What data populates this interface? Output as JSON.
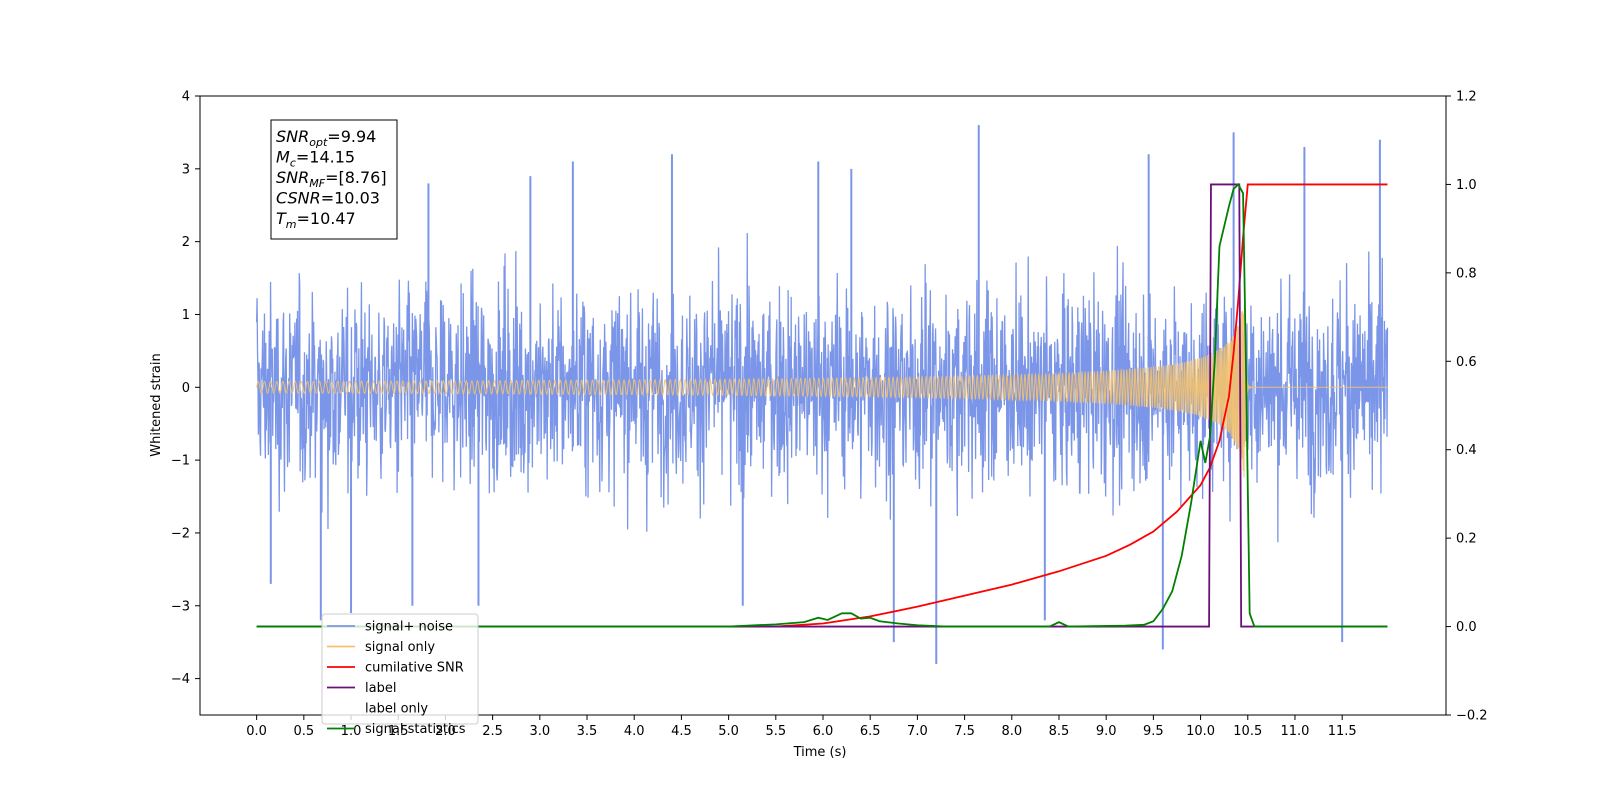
{
  "chart_data": {
    "type": "line",
    "xlabel": "Time (s)",
    "ylabel": "Whitened strain",
    "xlim": [
      -0.6,
      12.6
    ],
    "ylim": [
      -4.5,
      4
    ],
    "y2lim": [
      -0.2,
      1.2
    ],
    "x_ticks": [
      0.0,
      0.5,
      1.0,
      1.5,
      2.0,
      2.5,
      3.0,
      3.5,
      4.0,
      4.5,
      5.0,
      5.5,
      6.0,
      6.5,
      7.0,
      7.5,
      8.0,
      8.5,
      9.0,
      9.5,
      10.0,
      10.5,
      11.0,
      11.5
    ],
    "x_tick_labels": [
      "0.0",
      "0.5",
      "1.0",
      "1.5",
      "2.0",
      "2.5",
      "3.0",
      "3.5",
      "4.0",
      "4.5",
      "5.0",
      "5.5",
      "6.0",
      "6.5",
      "7.0",
      "7.5",
      "8.0",
      "8.5",
      "9.0",
      "9.5",
      "10.0",
      "10.5",
      "11.0",
      "11.5"
    ],
    "y_ticks": [
      -4,
      -3,
      -2,
      -1,
      0,
      1,
      2,
      3,
      4
    ],
    "y_tick_labels": [
      "−4",
      "−3",
      "−2",
      "−1",
      "0",
      "1",
      "2",
      "3",
      "4"
    ],
    "y2_ticks": [
      -0.2,
      0.0,
      0.2,
      0.4,
      0.6,
      0.8,
      1.0,
      1.2
    ],
    "y2_tick_labels": [
      "−0.2",
      "0.0",
      "0.2",
      "0.4",
      "0.6",
      "0.8",
      "1.0",
      "1.2"
    ],
    "grid": false,
    "legend_position": "bottom-left",
    "annotation": [
      {
        "base": "SNR",
        "sub": "opt",
        "value": "=9.94"
      },
      {
        "base": "M",
        "sub": "c",
        "value": "=14.15"
      },
      {
        "base": "SNR",
        "sub": "MF",
        "value": "=[8.76]"
      },
      {
        "base": "CSNR",
        "sub": "",
        "value": "=10.03"
      },
      {
        "base": "T",
        "sub": "m",
        "value": "=10.47"
      }
    ],
    "series": [
      {
        "name": "signal+ noise",
        "color": "#7b96e8",
        "axis": "left",
        "style": "noise",
        "x_range": [
          0.0,
          11.98
        ],
        "envelope": [
          2.3,
          3.6
        ],
        "peaks": [
          [
            0.15,
            -2.7
          ],
          [
            0.68,
            -3.2
          ],
          [
            1.0,
            -3.1
          ],
          [
            1.65,
            -3.0
          ],
          [
            1.82,
            2.8
          ],
          [
            2.35,
            -3.0
          ],
          [
            2.9,
            2.9
          ],
          [
            3.35,
            3.1
          ],
          [
            4.4,
            3.2
          ],
          [
            5.15,
            -3.0
          ],
          [
            5.95,
            3.1
          ],
          [
            6.3,
            3.0
          ],
          [
            6.75,
            -3.5
          ],
          [
            7.2,
            -3.8
          ],
          [
            7.65,
            3.6
          ],
          [
            8.35,
            -3.2
          ],
          [
            9.45,
            3.2
          ],
          [
            9.6,
            -3.6
          ],
          [
            10.35,
            3.5
          ],
          [
            11.1,
            3.3
          ],
          [
            11.5,
            -3.5
          ],
          [
            11.9,
            3.4
          ]
        ]
      },
      {
        "name": "signal only",
        "color": "#f5c26b",
        "axis": "left",
        "style": "chirp",
        "x_range": [
          0.0,
          11.98
        ],
        "merger_time": 10.47,
        "peak_amplitude": 1.35
      },
      {
        "name": "cumilative SNR",
        "color": "#ff0000",
        "axis": "right",
        "x": [
          5.5,
          6.0,
          6.5,
          7.0,
          7.5,
          8.0,
          8.5,
          9.0,
          9.25,
          9.5,
          9.75,
          10.0,
          10.1,
          10.2,
          10.3,
          10.35,
          10.4,
          10.45,
          10.5,
          11.0,
          11.5,
          11.98
        ],
        "y": [
          0.0,
          0.007,
          0.023,
          0.045,
          0.07,
          0.095,
          0.125,
          0.16,
          0.185,
          0.215,
          0.26,
          0.32,
          0.36,
          0.42,
          0.52,
          0.62,
          0.74,
          0.88,
          1.0,
          1.0,
          1.0,
          1.0
        ]
      },
      {
        "name": "label",
        "color": "#6b0f7a",
        "axis": "right",
        "x": [
          0.0,
          10.09,
          10.11,
          10.41,
          10.43,
          11.98
        ],
        "y": [
          0.0,
          0.0,
          1.0,
          1.0,
          0.0,
          0.0
        ]
      },
      {
        "name": "label only",
        "color": "#6b0f7a",
        "axis": "right",
        "x": [],
        "y": []
      },
      {
        "name": "signal statistics",
        "color": "#008000",
        "axis": "right",
        "x": [
          0.0,
          5.0,
          5.5,
          5.8,
          5.95,
          6.05,
          6.2,
          6.3,
          6.4,
          6.5,
          6.6,
          6.8,
          7.0,
          7.3,
          8.4,
          8.5,
          8.6,
          9.2,
          9.4,
          9.5,
          9.6,
          9.7,
          9.8,
          9.9,
          10.0,
          10.05,
          10.1,
          10.15,
          10.2,
          10.3,
          10.35,
          10.4,
          10.45,
          10.48,
          10.52,
          10.57,
          11.0,
          11.98
        ],
        "y": [
          0.0,
          0.0,
          0.005,
          0.01,
          0.02,
          0.015,
          0.03,
          0.03,
          0.018,
          0.02,
          0.012,
          0.007,
          0.003,
          0.0,
          0.0,
          0.01,
          0.0,
          0.002,
          0.004,
          0.012,
          0.04,
          0.08,
          0.16,
          0.28,
          0.42,
          0.37,
          0.43,
          0.6,
          0.86,
          0.95,
          0.99,
          1.0,
          0.98,
          0.6,
          0.03,
          0.0,
          0.0,
          0.0
        ]
      }
    ]
  }
}
